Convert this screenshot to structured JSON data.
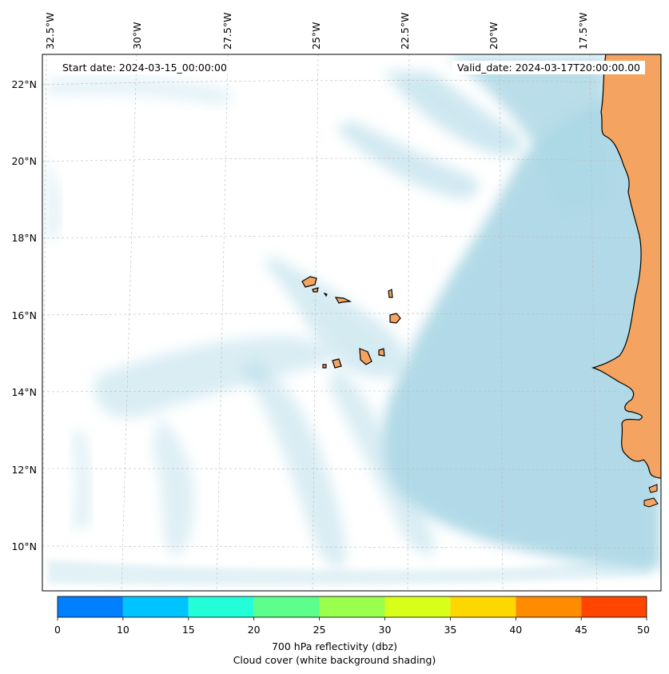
{
  "header": {
    "start_date": "Start date: 2024-03-15_00:00:00",
    "valid_date": "Valid_date: 2024-03-17T20:00:00.00"
  },
  "map": {
    "lon_ticks": [
      "32.5°W",
      "30°W",
      "27.5°W",
      "25°W",
      "22.5°W",
      "20°W",
      "17.5°W"
    ],
    "lat_ticks": [
      "22°N",
      "20°N",
      "18°N",
      "16°N",
      "14°N",
      "12°N",
      "10°N"
    ],
    "land_color": "#f4a460",
    "cloud_color": "#add8e6",
    "gridlines": true
  },
  "colorbar": {
    "ticks": [
      "0",
      "10",
      "15",
      "20",
      "25",
      "30",
      "35",
      "40",
      "45",
      "50"
    ],
    "colors": [
      "#0080ff",
      "#00c4ff",
      "#22ffd8",
      "#5dff8c",
      "#9aff4d",
      "#d8ff1a",
      "#ffd700",
      "#ff8c00",
      "#ff4500"
    ],
    "label_line1": "700 hPa reflectivity (dbz)",
    "label_line2": "Cloud cover (white background shading)"
  }
}
